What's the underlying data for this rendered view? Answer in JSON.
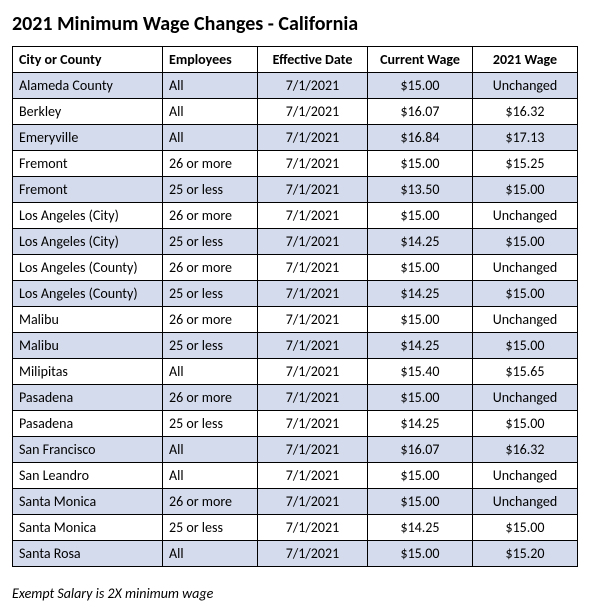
{
  "title": "2021 Minimum Wage Changes - California",
  "columns": [
    "City or County",
    "Employees",
    "Effective Date",
    "Current Wage",
    "2021 Wage"
  ],
  "rows": [
    {
      "city": "Alameda County",
      "emp": "All",
      "date": "7/1/2021",
      "cur": "$15.00",
      "new": "Unchanged",
      "shaded": true
    },
    {
      "city": "Berkley",
      "emp": "All",
      "date": "7/1/2021",
      "cur": "$16.07",
      "new": "$16.32",
      "shaded": false
    },
    {
      "city": "Emeryville",
      "emp": "All",
      "date": "7/1/2021",
      "cur": "$16.84",
      "new": "$17.13",
      "shaded": true
    },
    {
      "city": "Fremont",
      "emp": "26 or more",
      "date": "7/1/2021",
      "cur": "$15.00",
      "new": "$15.25",
      "shaded": false
    },
    {
      "city": "Fremont",
      "emp": "25 or less",
      "date": "7/1/2021",
      "cur": "$13.50",
      "new": "$15.00",
      "shaded": true
    },
    {
      "city": "Los Angeles (City)",
      "emp": "26 or more",
      "date": "7/1/2021",
      "cur": "$15.00",
      "new": "Unchanged",
      "shaded": false
    },
    {
      "city": "Los Angeles (City)",
      "emp": "25 or less",
      "date": "7/1/2021",
      "cur": "$14.25",
      "new": "$15.00",
      "shaded": true
    },
    {
      "city": "Los Angeles (County)",
      "emp": "26 or more",
      "date": "7/1/2021",
      "cur": "$15.00",
      "new": "Unchanged",
      "shaded": false
    },
    {
      "city": "Los Angeles (County)",
      "emp": "25 or less",
      "date": "7/1/2021",
      "cur": "$14.25",
      "new": "$15.00",
      "shaded": true
    },
    {
      "city": "Malibu",
      "emp": "26 or more",
      "date": "7/1/2021",
      "cur": "$15.00",
      "new": "Unchanged",
      "shaded": false
    },
    {
      "city": "Malibu",
      "emp": "25 or less",
      "date": "7/1/2021",
      "cur": "$14.25",
      "new": "$15.00",
      "shaded": true
    },
    {
      "city": "Milipitas",
      "emp": "All",
      "date": "7/1/2021",
      "cur": "$15.40",
      "new": "$15.65",
      "shaded": false
    },
    {
      "city": "Pasadena",
      "emp": "26 or more",
      "date": "7/1/2021",
      "cur": "$15.00",
      "new": "Unchanged",
      "shaded": true
    },
    {
      "city": "Pasadena",
      "emp": "25 or less",
      "date": "7/1/2021",
      "cur": "$14.25",
      "new": "$15.00",
      "shaded": false
    },
    {
      "city": "San Francisco",
      "emp": "All",
      "date": "7/1/2021",
      "cur": "$16.07",
      "new": "$16.32",
      "shaded": true
    },
    {
      "city": "San Leandro",
      "emp": "All",
      "date": "7/1/2021",
      "cur": "$15.00",
      "new": "Unchanged",
      "shaded": false
    },
    {
      "city": "Santa Monica",
      "emp": "26 or more",
      "date": "7/1/2021",
      "cur": "$15.00",
      "new": "Unchanged",
      "shaded": true
    },
    {
      "city": "Santa Monica",
      "emp": "25 or less",
      "date": "7/1/2021",
      "cur": "$14.25",
      "new": "$15.00",
      "shaded": false
    },
    {
      "city": "Santa Rosa",
      "emp": "All",
      "date": "7/1/2021",
      "cur": "$15.00",
      "new": "$15.20",
      "shaded": true
    }
  ],
  "footnote": "Exempt Salary is 2X minimum wage",
  "colors": {
    "shaded_row": "#d4dbec",
    "border": "#000000",
    "background": "#ffffff"
  }
}
